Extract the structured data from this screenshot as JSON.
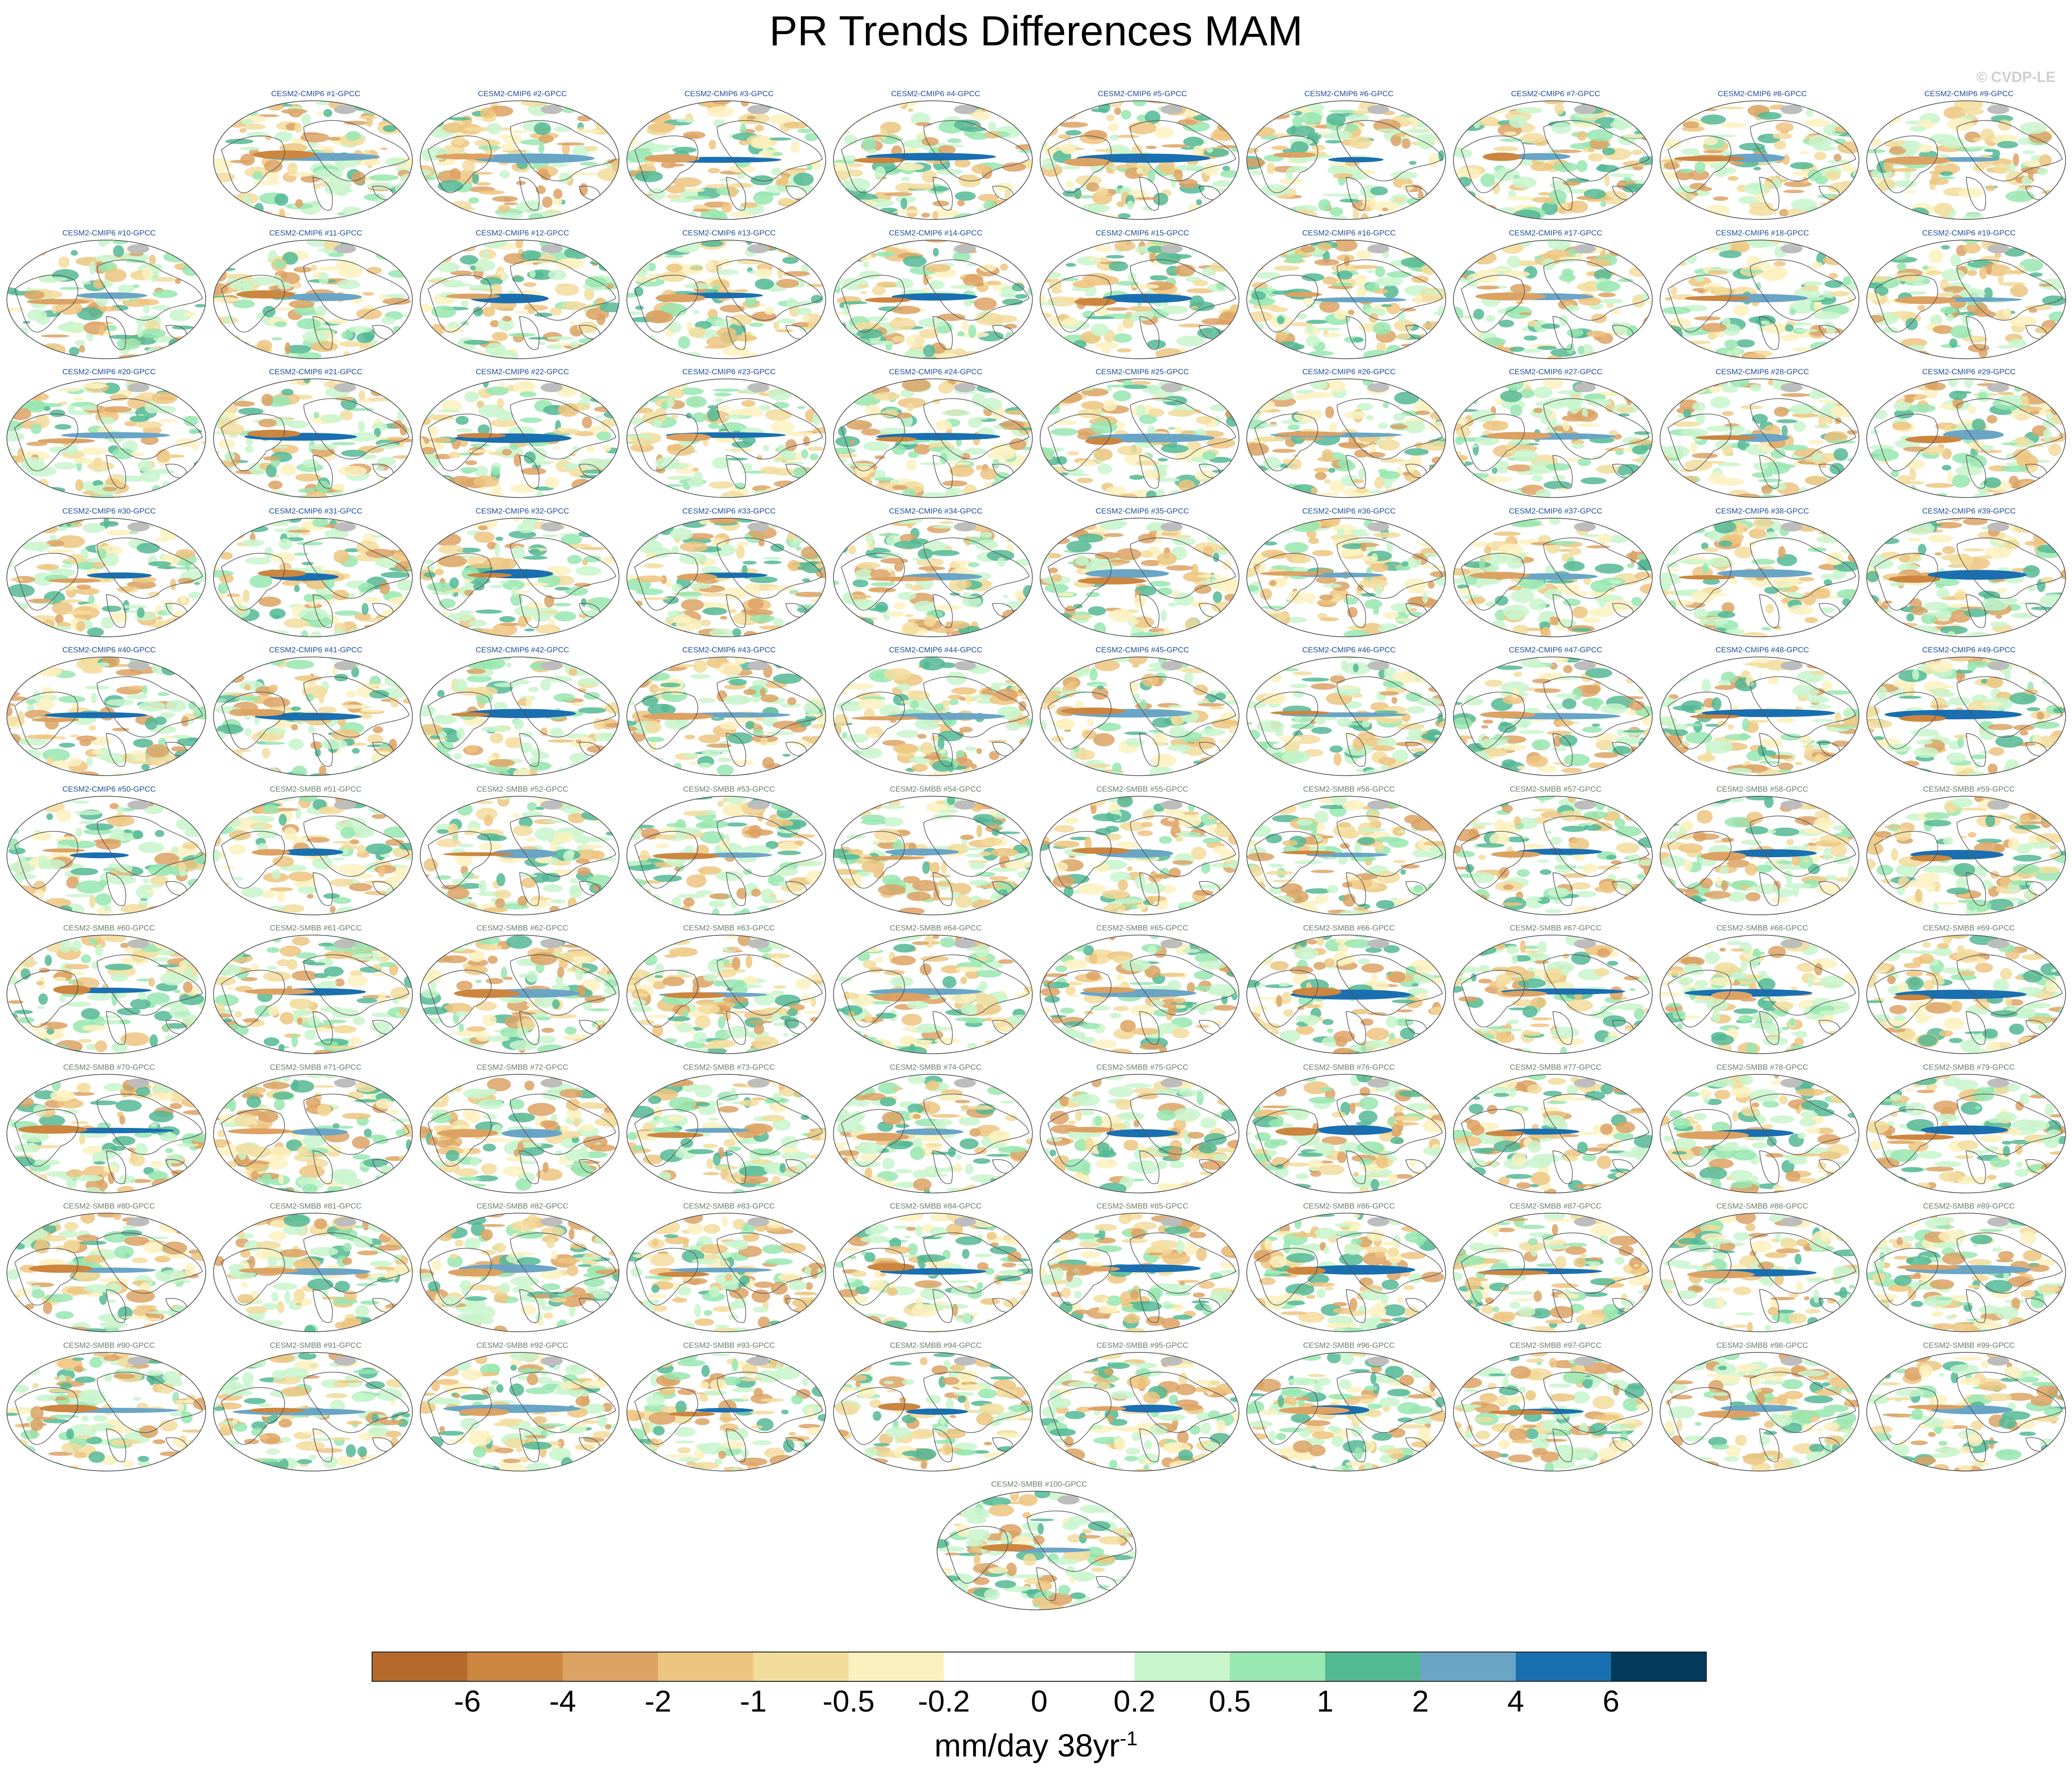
{
  "title": "PR Trends Differences MAM",
  "watermark": "© CVDP-LE",
  "chart_data": {
    "type": "heatmap",
    "title": "PR Trends Differences MAM",
    "projection": "robinson-like global maps, one per ensemble member",
    "panels_count": 100,
    "panel_label_groups": [
      {
        "prefix": "CESM2-CMIP6 #",
        "suffix": "-GPCC",
        "from": 1,
        "to": 50,
        "color": "#1f4e9a"
      },
      {
        "prefix": "CESM2-SMBB #",
        "suffix": "-GPCC",
        "from": 51,
        "to": 100,
        "color": "#6a7f6a"
      }
    ],
    "colorbar": {
      "levels": [
        "-6",
        "-4",
        "-2",
        "-1",
        "-0.5",
        "-0.2",
        "0",
        "0.2",
        "0.5",
        "1",
        "2",
        "4",
        "6"
      ],
      "colors": [
        "#b5692a",
        "#cc8640",
        "#dca264",
        "#edc47f",
        "#f2dc9c",
        "#fbf1bf",
        "#ffffff",
        "#ffffff",
        "#c9f5cc",
        "#98e6b0",
        "#53b894",
        "#6aa5c6",
        "#1a6fb0",
        "#033a5c"
      ],
      "units_base": "mm/day 38yr",
      "units_exponent": "-1"
    }
  }
}
